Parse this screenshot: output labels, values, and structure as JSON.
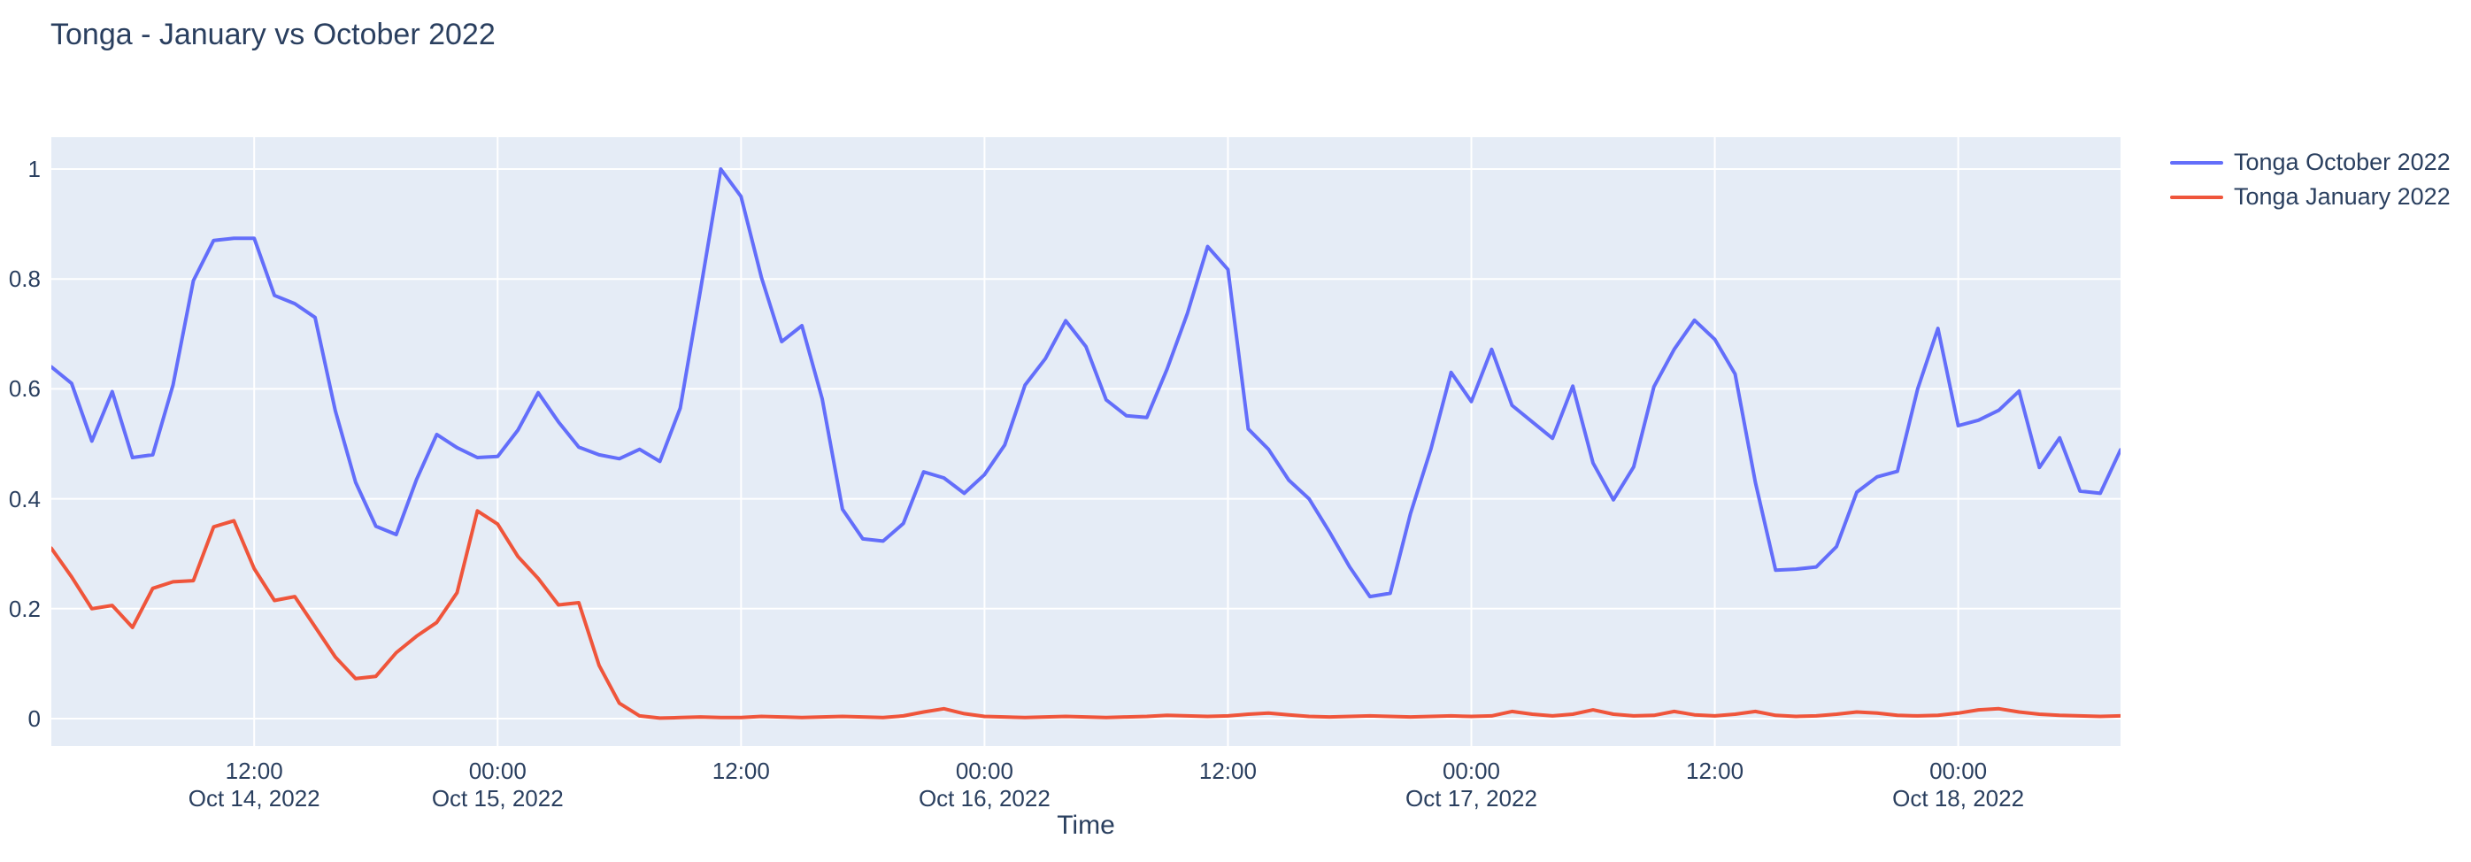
{
  "chart": {
    "title": "Tonga - January vs October 2022",
    "xaxis_title": "Time",
    "font_color": "#2a3f5f",
    "plot_bg_color": "#E5ECF6",
    "grid_color": "#ffffff",
    "paper_color": "#ffffff"
  },
  "chart_data": {
    "type": "line",
    "title": "Tonga - January vs October 2022",
    "xlabel": "Time",
    "ylabel": "",
    "grid": true,
    "legend_position": "top-right-outside",
    "x_start": "2022-10-14 02:00",
    "x_step_hours": 1,
    "n_points": 103,
    "x_end": "2022-10-18 08:00",
    "ylim": [
      -0.05,
      1.06
    ],
    "yticks": [
      0,
      0.2,
      0.4,
      0.6,
      0.8,
      1
    ],
    "ytick_labels": [
      "0",
      "0.2",
      "0.4",
      "0.6",
      "0.8",
      "1"
    ],
    "xticks": [
      {
        "hour_offset": 10,
        "lines": [
          "12:00",
          "Oct 14, 2022"
        ]
      },
      {
        "hour_offset": 22,
        "lines": [
          "00:00",
          "Oct 15, 2022"
        ]
      },
      {
        "hour_offset": 34,
        "lines": [
          "12:00"
        ]
      },
      {
        "hour_offset": 46,
        "lines": [
          "00:00",
          "Oct 16, 2022"
        ]
      },
      {
        "hour_offset": 58,
        "lines": [
          "12:00"
        ]
      },
      {
        "hour_offset": 70,
        "lines": [
          "00:00",
          "Oct 17, 2022"
        ]
      },
      {
        "hour_offset": 82,
        "lines": [
          "12:00"
        ]
      },
      {
        "hour_offset": 94,
        "lines": [
          "00:00",
          "Oct 18, 2022"
        ]
      }
    ],
    "series": [
      {
        "name": "Tonga October 2022",
        "color": "#636EFA",
        "values": [
          0.64,
          0.61,
          0.505,
          0.595,
          0.475,
          0.48,
          0.607,
          0.797,
          0.87,
          0.874,
          0.874,
          0.77,
          0.755,
          0.73,
          0.56,
          0.43,
          0.35,
          0.335,
          0.435,
          0.517,
          0.493,
          0.475,
          0.477,
          0.525,
          0.593,
          0.54,
          0.494,
          0.48,
          0.473,
          0.49,
          0.468,
          0.565,
          0.78,
          1.0,
          0.95,
          0.803,
          0.686,
          0.715,
          0.582,
          0.381,
          0.327,
          0.323,
          0.355,
          0.449,
          0.438,
          0.41,
          0.444,
          0.498,
          0.607,
          0.655,
          0.724,
          0.677,
          0.58,
          0.551,
          0.548,
          0.636,
          0.737,
          0.859,
          0.817,
          0.527,
          0.49,
          0.434,
          0.4,
          0.34,
          0.276,
          0.222,
          0.228,
          0.373,
          0.49,
          0.63,
          0.577,
          0.672,
          0.57,
          0.54,
          0.51,
          0.605,
          0.465,
          0.398,
          0.458,
          0.604,
          0.672,
          0.725,
          0.69,
          0.627,
          0.43,
          0.27,
          0.272,
          0.276,
          0.313,
          0.412,
          0.44,
          0.45,
          0.6,
          0.71,
          0.533,
          0.543,
          0.561,
          0.596,
          0.457,
          0.511,
          0.414,
          0.41,
          0.489
        ]
      },
      {
        "name": "Tonga January 2022",
        "color": "#EF553B",
        "values": [
          0.31,
          0.258,
          0.2,
          0.206,
          0.166,
          0.237,
          0.249,
          0.251,
          0.349,
          0.36,
          0.273,
          0.215,
          0.222,
          0.167,
          0.112,
          0.073,
          0.077,
          0.12,
          0.15,
          0.175,
          0.229,
          0.378,
          0.354,
          0.295,
          0.255,
          0.207,
          0.211,
          0.097,
          0.028,
          0.005,
          0.001,
          0.002,
          0.003,
          0.002,
          0.002,
          0.004,
          0.003,
          0.002,
          0.003,
          0.004,
          0.003,
          0.002,
          0.005,
          0.012,
          0.018,
          0.009,
          0.004,
          0.003,
          0.002,
          0.003,
          0.004,
          0.003,
          0.002,
          0.003,
          0.004,
          0.006,
          0.005,
          0.004,
          0.005,
          0.008,
          0.01,
          0.007,
          0.004,
          0.003,
          0.004,
          0.005,
          0.004,
          0.003,
          0.004,
          0.005,
          0.004,
          0.005,
          0.013,
          0.008,
          0.005,
          0.008,
          0.016,
          0.008,
          0.005,
          0.006,
          0.013,
          0.007,
          0.005,
          0.008,
          0.013,
          0.006,
          0.004,
          0.005,
          0.008,
          0.012,
          0.01,
          0.006,
          0.005,
          0.006,
          0.01,
          0.016,
          0.018,
          0.012,
          0.008,
          0.006,
          0.005,
          0.004,
          0.005
        ]
      }
    ]
  }
}
